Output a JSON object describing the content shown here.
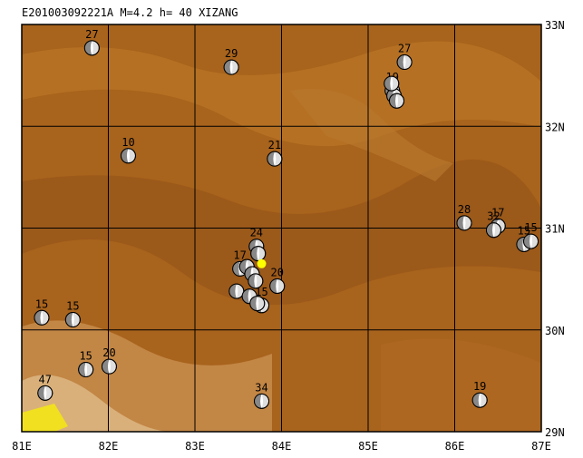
{
  "map": {
    "title": "E201003092221A M=4.2 h= 40 XIZANG",
    "lonlim": [
      81,
      87
    ],
    "latlim": [
      29,
      33
    ],
    "lonticks": [
      {
        "value": 81,
        "label": "81E"
      },
      {
        "value": 82,
        "label": "82E"
      },
      {
        "value": 83,
        "label": "83E"
      },
      {
        "value": 84,
        "label": "84E"
      },
      {
        "value": 85,
        "label": "85E"
      },
      {
        "value": 86,
        "label": "86E"
      },
      {
        "value": 87,
        "label": "87E"
      }
    ],
    "latticks": [
      {
        "value": 29,
        "label": "29N"
      },
      {
        "value": 30,
        "label": "30N"
      },
      {
        "value": 31,
        "label": "31N"
      },
      {
        "value": 32,
        "label": "32N"
      },
      {
        "value": 33,
        "label": "33N"
      }
    ],
    "epicenter": {
      "lon": 83.77,
      "lat": 30.65,
      "color": "#ffff00"
    },
    "events": [
      {
        "lon": 81.81,
        "lat": 32.77,
        "label": "27"
      },
      {
        "lon": 83.42,
        "lat": 32.58,
        "label": "29"
      },
      {
        "lon": 85.42,
        "lat": 32.63,
        "label": "27"
      },
      {
        "lon": 85.28,
        "lat": 32.35,
        "label": "19"
      },
      {
        "lon": 85.3,
        "lat": 32.3
      },
      {
        "lon": 85.33,
        "lat": 32.25
      },
      {
        "lon": 85.27,
        "lat": 32.42
      },
      {
        "lon": 82.23,
        "lat": 31.71,
        "label": "10"
      },
      {
        "lon": 83.92,
        "lat": 31.68,
        "label": "21"
      },
      {
        "lon": 86.11,
        "lat": 31.05,
        "label": "28"
      },
      {
        "lon": 86.5,
        "lat": 31.02,
        "label": "17"
      },
      {
        "lon": 86.45,
        "lat": 30.98,
        "label": "32"
      },
      {
        "lon": 86.8,
        "lat": 30.84,
        "label": "15"
      },
      {
        "lon": 86.88,
        "lat": 30.87,
        "label": "15"
      },
      {
        "lon": 83.71,
        "lat": 30.82,
        "label": "24"
      },
      {
        "lon": 83.73,
        "lat": 30.75
      },
      {
        "lon": 83.52,
        "lat": 30.6,
        "label": "17"
      },
      {
        "lon": 83.6,
        "lat": 30.62
      },
      {
        "lon": 83.66,
        "lat": 30.55
      },
      {
        "lon": 83.7,
        "lat": 30.48
      },
      {
        "lon": 83.48,
        "lat": 30.38
      },
      {
        "lon": 83.63,
        "lat": 30.33
      },
      {
        "lon": 83.77,
        "lat": 30.24,
        "label": "15"
      },
      {
        "lon": 83.72,
        "lat": 30.26
      },
      {
        "lon": 83.95,
        "lat": 30.43,
        "label": "20"
      },
      {
        "lon": 81.23,
        "lat": 30.12,
        "label": "15"
      },
      {
        "lon": 81.59,
        "lat": 30.1,
        "label": "15"
      },
      {
        "lon": 81.74,
        "lat": 29.61,
        "label": "15"
      },
      {
        "lon": 82.01,
        "lat": 29.64,
        "label": "20"
      },
      {
        "lon": 81.27,
        "lat": 29.38,
        "label": "47"
      },
      {
        "lon": 83.77,
        "lat": 29.3,
        "label": "34"
      },
      {
        "lon": 86.29,
        "lat": 29.31,
        "label": "19"
      }
    ]
  }
}
